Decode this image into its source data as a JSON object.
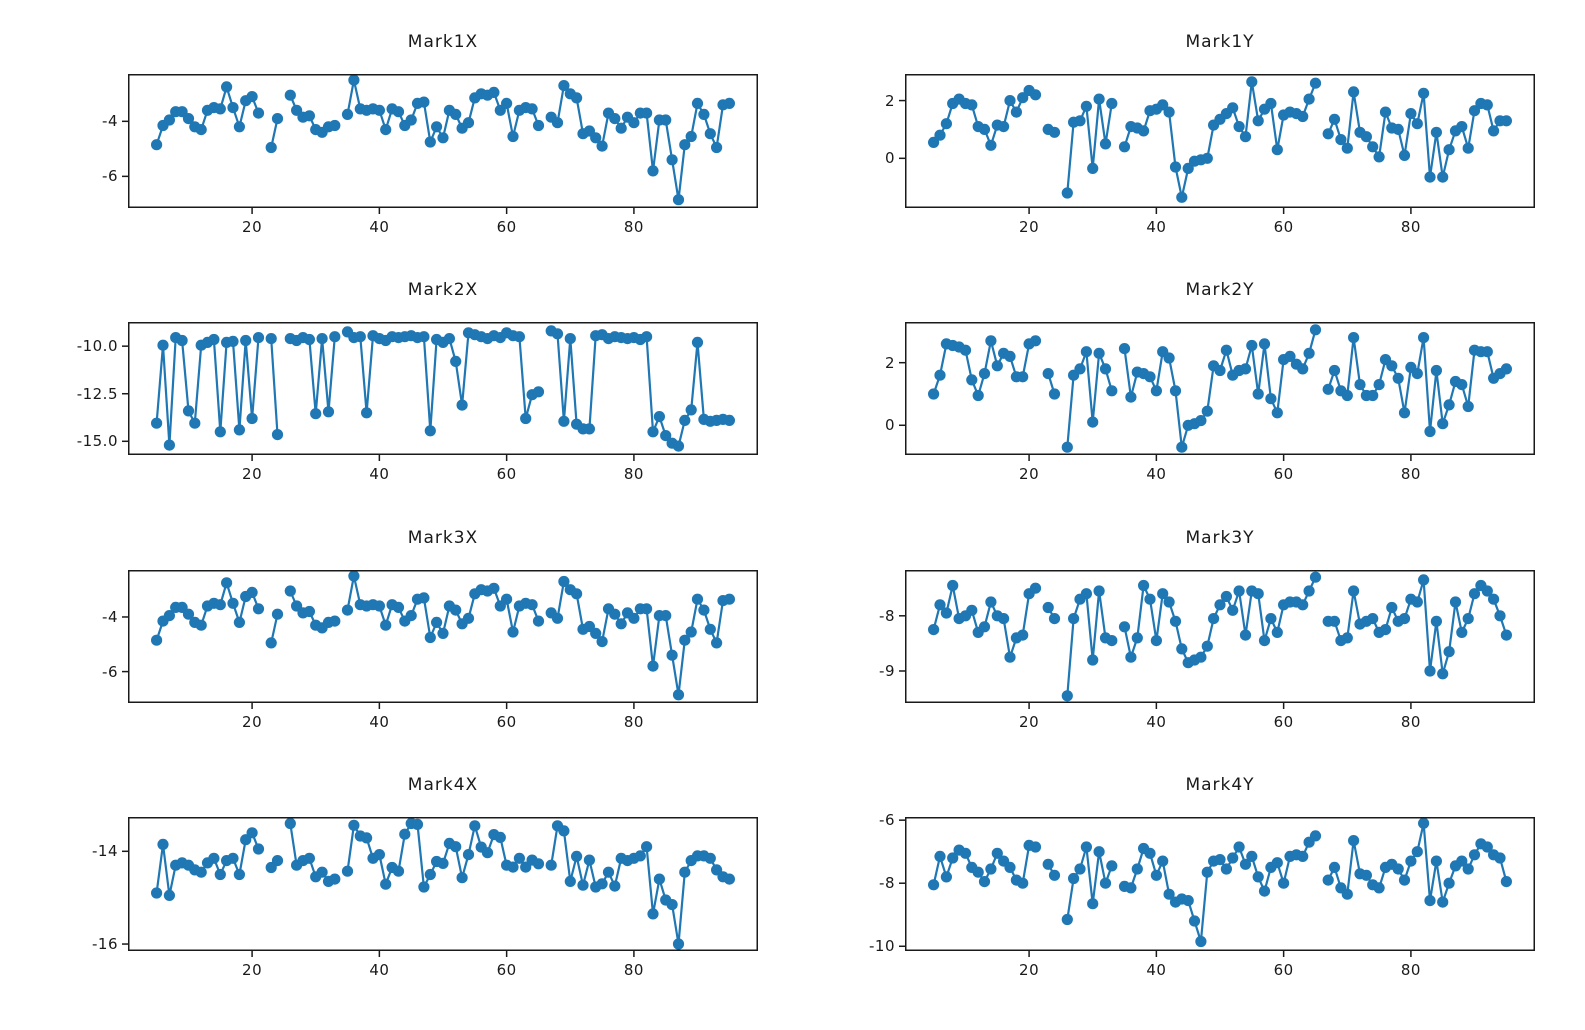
{
  "figure": {
    "background": "#ffffff",
    "line_color": "#1f77b4",
    "spine_color": "#1a1a1a"
  },
  "chart_data": {
    "type": "line",
    "marker": "o",
    "legend": "none",
    "grid": false,
    "xlim": [
      0.5,
      99.5
    ],
    "xticks": [
      20,
      40,
      60,
      80
    ],
    "xtick_labels": [
      "20",
      "40",
      "60",
      "80"
    ],
    "x": [
      5,
      6,
      7,
      8,
      9,
      10,
      11,
      12,
      13,
      14,
      15,
      16,
      17,
      18,
      19,
      20,
      21,
      22,
      23,
      24,
      25,
      26,
      27,
      28,
      29,
      30,
      31,
      32,
      33,
      34,
      35,
      36,
      37,
      38,
      39,
      40,
      41,
      42,
      43,
      44,
      45,
      46,
      47,
      48,
      49,
      50,
      51,
      52,
      53,
      54,
      55,
      56,
      57,
      58,
      59,
      60,
      61,
      62,
      63,
      64,
      65,
      66,
      67,
      68,
      69,
      70,
      71,
      72,
      73,
      74,
      75,
      76,
      77,
      78,
      79,
      80,
      81,
      82,
      83,
      84,
      85,
      86,
      87,
      88,
      89,
      90,
      91,
      92,
      93,
      94,
      95
    ],
    "subplots": [
      {
        "title": "Mark1X",
        "ylim": [
          -7.15,
          -2.28
        ],
        "yticks": [
          {
            "value": -4,
            "label": "-4"
          },
          {
            "value": -6,
            "label": "-6"
          }
        ],
        "y": [
          -4.85,
          -4.15,
          -3.95,
          -3.65,
          -3.65,
          -3.9,
          -4.2,
          -4.3,
          -3.6,
          -3.5,
          -3.55,
          -2.75,
          -3.5,
          -4.2,
          -3.25,
          -3.1,
          -3.7,
          null,
          -4.95,
          -3.9,
          null,
          -3.05,
          -3.6,
          -3.85,
          -3.8,
          -4.3,
          -4.4,
          -4.2,
          -4.15,
          null,
          -3.75,
          -2.5,
          -3.55,
          -3.6,
          -3.55,
          -3.6,
          -4.3,
          -3.55,
          -3.65,
          -4.15,
          -3.95,
          -3.35,
          -3.3,
          -4.75,
          -4.2,
          -4.6,
          -3.6,
          -3.75,
          -4.25,
          -4.05,
          -3.15,
          -3.0,
          -3.05,
          -2.95,
          -3.6,
          -3.35,
          -4.55,
          -3.6,
          -3.5,
          -3.55,
          -4.15,
          null,
          -3.85,
          -4.05,
          -2.7,
          -3.0,
          -3.15,
          -4.45,
          -4.35,
          -4.6,
          -4.9,
          -3.7,
          -3.9,
          -4.25,
          -3.85,
          -4.05,
          -3.7,
          -3.7,
          -5.8,
          -3.95,
          -3.95,
          -5.4,
          -6.85,
          -4.85,
          -4.55,
          -3.35,
          -3.75,
          -4.45,
          -4.95,
          -3.4,
          -3.35
        ]
      },
      {
        "title": "Mark1Y",
        "ylim": [
          -1.72,
          2.92
        ],
        "yticks": [
          {
            "value": 2,
            "label": "2"
          },
          {
            "value": 0,
            "label": "0"
          }
        ],
        "y": [
          0.55,
          0.8,
          1.2,
          1.9,
          2.05,
          1.9,
          1.85,
          1.1,
          1.0,
          0.45,
          1.15,
          1.1,
          2.0,
          1.6,
          2.1,
          2.35,
          2.2,
          null,
          1.0,
          0.9,
          null,
          -1.2,
          1.25,
          1.3,
          1.8,
          -0.35,
          2.05,
          0.5,
          1.9,
          null,
          0.4,
          1.1,
          1.05,
          0.95,
          1.65,
          1.7,
          1.85,
          1.6,
          -0.3,
          -1.35,
          -0.35,
          -0.1,
          -0.05,
          0.0,
          1.15,
          1.35,
          1.55,
          1.75,
          1.1,
          0.75,
          2.65,
          1.3,
          1.7,
          1.9,
          0.3,
          1.5,
          1.6,
          1.55,
          1.45,
          2.05,
          2.6,
          null,
          0.85,
          1.35,
          0.65,
          0.35,
          2.3,
          0.9,
          0.75,
          0.4,
          0.05,
          1.6,
          1.05,
          1.0,
          0.1,
          1.55,
          1.2,
          2.25,
          -0.65,
          0.9,
          -0.65,
          0.3,
          0.95,
          1.1,
          0.35,
          1.65,
          1.9,
          1.85,
          0.95,
          1.3,
          1.3
        ]
      },
      {
        "title": "Mark2X",
        "ylim": [
          -15.72,
          -8.73
        ],
        "yticks": [
          {
            "value": -10.0,
            "label": "-10.0"
          },
          {
            "value": -12.5,
            "label": "-12.5"
          },
          {
            "value": -15.0,
            "label": "-15.0"
          }
        ],
        "y": [
          -14.05,
          -9.95,
          -15.2,
          -9.55,
          -9.7,
          -13.4,
          -14.05,
          -9.95,
          -9.8,
          -9.65,
          -14.5,
          -9.8,
          -9.75,
          -14.4,
          -9.7,
          -13.8,
          -9.55,
          null,
          -9.6,
          -14.65,
          null,
          -9.6,
          -9.7,
          -9.55,
          -9.65,
          -13.55,
          -9.6,
          -13.45,
          -9.5,
          null,
          -9.25,
          -9.55,
          -9.5,
          -13.5,
          -9.45,
          -9.6,
          -9.7,
          -9.5,
          -9.55,
          -9.5,
          -9.45,
          -9.55,
          -9.5,
          -14.45,
          -9.65,
          -9.8,
          -9.6,
          -10.8,
          -13.1,
          -9.3,
          -9.4,
          -9.5,
          -9.6,
          -9.45,
          -9.55,
          -9.3,
          -9.45,
          -9.5,
          -13.8,
          -12.55,
          -12.4,
          null,
          -9.2,
          -9.35,
          -13.95,
          -9.6,
          -14.1,
          -14.35,
          -14.35,
          -9.45,
          -9.4,
          -9.6,
          -9.5,
          -9.55,
          -9.6,
          -9.55,
          -9.65,
          -9.5,
          -14.5,
          -13.7,
          -14.7,
          -15.1,
          -15.25,
          -13.9,
          -13.35,
          -9.8,
          -13.85,
          -13.95,
          -13.9,
          -13.85,
          -13.9
        ]
      },
      {
        "title": "Mark2Y",
        "ylim": [
          -0.95,
          3.3
        ],
        "yticks": [
          {
            "value": 2,
            "label": "2"
          },
          {
            "value": 0,
            "label": "0"
          }
        ],
        "y": [
          1.0,
          1.6,
          2.6,
          2.55,
          2.5,
          2.4,
          1.45,
          0.95,
          1.65,
          2.7,
          1.9,
          2.3,
          2.2,
          1.55,
          1.55,
          2.6,
          2.7,
          null,
          1.65,
          1.0,
          null,
          -0.7,
          1.6,
          1.8,
          2.35,
          0.1,
          2.3,
          1.8,
          1.1,
          null,
          2.45,
          0.9,
          1.7,
          1.65,
          1.55,
          1.1,
          2.35,
          2.15,
          1.1,
          -0.7,
          0.0,
          0.05,
          0.15,
          0.45,
          1.9,
          1.75,
          2.4,
          1.6,
          1.75,
          1.8,
          2.55,
          1.0,
          2.6,
          0.85,
          0.4,
          2.1,
          2.2,
          1.95,
          1.8,
          2.3,
          3.05,
          null,
          1.15,
          1.75,
          1.1,
          0.95,
          2.8,
          1.3,
          0.95,
          0.95,
          1.3,
          2.1,
          1.9,
          1.5,
          0.4,
          1.85,
          1.65,
          2.8,
          -0.2,
          1.75,
          0.05,
          0.65,
          1.4,
          1.3,
          0.6,
          2.4,
          2.35,
          2.35,
          1.5,
          1.65,
          1.8
        ]
      },
      {
        "title": "Mark3X",
        "ylim": [
          -7.15,
          -2.28
        ],
        "yticks": [
          {
            "value": -4,
            "label": "-4"
          },
          {
            "value": -6,
            "label": "-6"
          }
        ],
        "y": [
          -4.85,
          -4.15,
          -3.95,
          -3.65,
          -3.65,
          -3.9,
          -4.2,
          -4.3,
          -3.6,
          -3.5,
          -3.55,
          -2.75,
          -3.5,
          -4.2,
          -3.25,
          -3.1,
          -3.7,
          null,
          -4.95,
          -3.9,
          null,
          -3.05,
          -3.6,
          -3.85,
          -3.8,
          -4.3,
          -4.4,
          -4.2,
          -4.15,
          null,
          -3.75,
          -2.5,
          -3.55,
          -3.6,
          -3.55,
          -3.6,
          -4.3,
          -3.55,
          -3.65,
          -4.15,
          -3.95,
          -3.35,
          -3.3,
          -4.75,
          -4.2,
          -4.6,
          -3.6,
          -3.75,
          -4.25,
          -4.05,
          -3.15,
          -3.0,
          -3.05,
          -2.95,
          -3.6,
          -3.35,
          -4.55,
          -3.6,
          -3.5,
          -3.55,
          -4.15,
          null,
          -3.85,
          -4.05,
          -2.7,
          -3.0,
          -3.15,
          -4.45,
          -4.35,
          -4.6,
          -4.9,
          -3.7,
          -3.9,
          -4.25,
          -3.85,
          -4.05,
          -3.7,
          -3.7,
          -5.8,
          -3.95,
          -3.95,
          -5.4,
          -6.85,
          -4.85,
          -4.55,
          -3.35,
          -3.75,
          -4.45,
          -4.95,
          -3.4,
          -3.35
        ]
      },
      {
        "title": "Mark3Y",
        "ylim": [
          -9.58,
          -7.17
        ],
        "yticks": [
          {
            "value": -8,
            "label": "-8"
          },
          {
            "value": -9,
            "label": "-9"
          }
        ],
        "y": [
          -8.25,
          -7.8,
          -7.95,
          -7.45,
          -8.05,
          -8.0,
          -7.9,
          -8.3,
          -8.2,
          -7.75,
          -8.0,
          -8.05,
          -8.75,
          -8.4,
          -8.35,
          -7.6,
          -7.5,
          null,
          -7.85,
          -8.05,
          null,
          -9.45,
          -8.05,
          -7.7,
          -7.6,
          -8.8,
          -7.55,
          -8.4,
          -8.45,
          null,
          -8.2,
          -8.75,
          -8.4,
          -7.45,
          -7.7,
          -8.45,
          -7.6,
          -7.75,
          -8.1,
          -8.6,
          -8.85,
          -8.8,
          -8.75,
          -8.55,
          -8.05,
          -7.8,
          -7.65,
          -7.9,
          -7.55,
          -8.35,
          -7.55,
          -7.6,
          -8.45,
          -8.05,
          -8.3,
          -7.8,
          -7.75,
          -7.75,
          -7.8,
          -7.55,
          -7.3,
          null,
          -8.1,
          -8.1,
          -8.45,
          -8.4,
          -7.55,
          -8.15,
          -8.1,
          -8.05,
          -8.3,
          -8.25,
          -7.85,
          -8.1,
          -8.05,
          -7.7,
          -7.75,
          -7.35,
          -9.0,
          -8.1,
          -9.05,
          -8.65,
          -7.75,
          -8.3,
          -8.05,
          -7.6,
          -7.45,
          -7.55,
          -7.7,
          -8.0,
          -8.35
        ]
      },
      {
        "title": "Mark4X",
        "ylim": [
          -16.15,
          -13.26
        ],
        "yticks": [
          {
            "value": -14,
            "label": "-14"
          },
          {
            "value": -16,
            "label": "-16"
          }
        ],
        "y": [
          -14.9,
          -13.85,
          -14.95,
          -14.3,
          -14.25,
          -14.3,
          -14.4,
          -14.45,
          -14.25,
          -14.15,
          -14.5,
          -14.2,
          -14.15,
          -14.5,
          -13.75,
          -13.6,
          -13.95,
          null,
          -14.35,
          -14.2,
          null,
          -13.4,
          -14.3,
          -14.2,
          -14.15,
          -14.55,
          -14.45,
          -14.65,
          -14.6,
          null,
          -14.43,
          -13.44,
          -13.67,
          -13.71,
          -14.15,
          -14.07,
          -14.71,
          -14.35,
          -14.43,
          -13.63,
          -13.4,
          -13.42,
          -14.77,
          -14.5,
          -14.22,
          -14.26,
          -13.83,
          -13.9,
          -14.57,
          -14.07,
          -13.45,
          -13.91,
          -14.03,
          -13.64,
          -13.7,
          -14.3,
          -14.34,
          -14.15,
          -14.34,
          -14.19,
          -14.27,
          null,
          -14.3,
          -13.45,
          -13.56,
          -14.65,
          -14.11,
          -14.73,
          -14.19,
          -14.77,
          -14.7,
          -14.45,
          -14.75,
          -14.15,
          -14.2,
          -14.15,
          -14.1,
          -13.9,
          -15.35,
          -14.6,
          -15.05,
          -15.15,
          -16.0,
          -14.45,
          -14.2,
          -14.1,
          -14.1,
          -14.15,
          -14.4,
          -14.55,
          -14.6
        ]
      },
      {
        "title": "Mark4Y",
        "ylim": [
          -10.15,
          -5.9
        ],
        "yticks": [
          {
            "value": -6,
            "label": "-6"
          },
          {
            "value": -8,
            "label": "-8"
          },
          {
            "value": -10,
            "label": "-10"
          }
        ],
        "y": [
          -8.05,
          -7.15,
          -7.8,
          -7.2,
          -6.95,
          -7.05,
          -7.5,
          -7.65,
          -7.95,
          -7.55,
          -7.05,
          -7.3,
          -7.5,
          -7.9,
          -8.0,
          -6.8,
          -6.85,
          null,
          -7.4,
          -7.75,
          null,
          -9.15,
          -7.85,
          -7.55,
          -6.85,
          -8.65,
          -7.0,
          -8.0,
          -7.45,
          null,
          -8.1,
          -8.15,
          -7.55,
          -6.9,
          -7.05,
          -7.75,
          -7.3,
          -8.35,
          -8.6,
          -8.5,
          -8.55,
          -9.2,
          -9.85,
          -7.65,
          -7.3,
          -7.25,
          -7.55,
          -7.2,
          -6.85,
          -7.4,
          -7.15,
          -7.8,
          -8.25,
          -7.5,
          -7.35,
          -8.0,
          -7.15,
          -7.1,
          -7.15,
          -6.7,
          -6.5,
          null,
          -7.9,
          -7.5,
          -8.15,
          -8.35,
          -6.65,
          -7.7,
          -7.75,
          -8.05,
          -8.15,
          -7.5,
          -7.4,
          -7.55,
          -7.9,
          -7.3,
          -7.0,
          -6.1,
          -8.55,
          -7.3,
          -8.6,
          -8.0,
          -7.45,
          -7.3,
          -7.55,
          -7.1,
          -6.75,
          -6.85,
          -7.1,
          -7.2,
          -7.95
        ]
      }
    ]
  }
}
